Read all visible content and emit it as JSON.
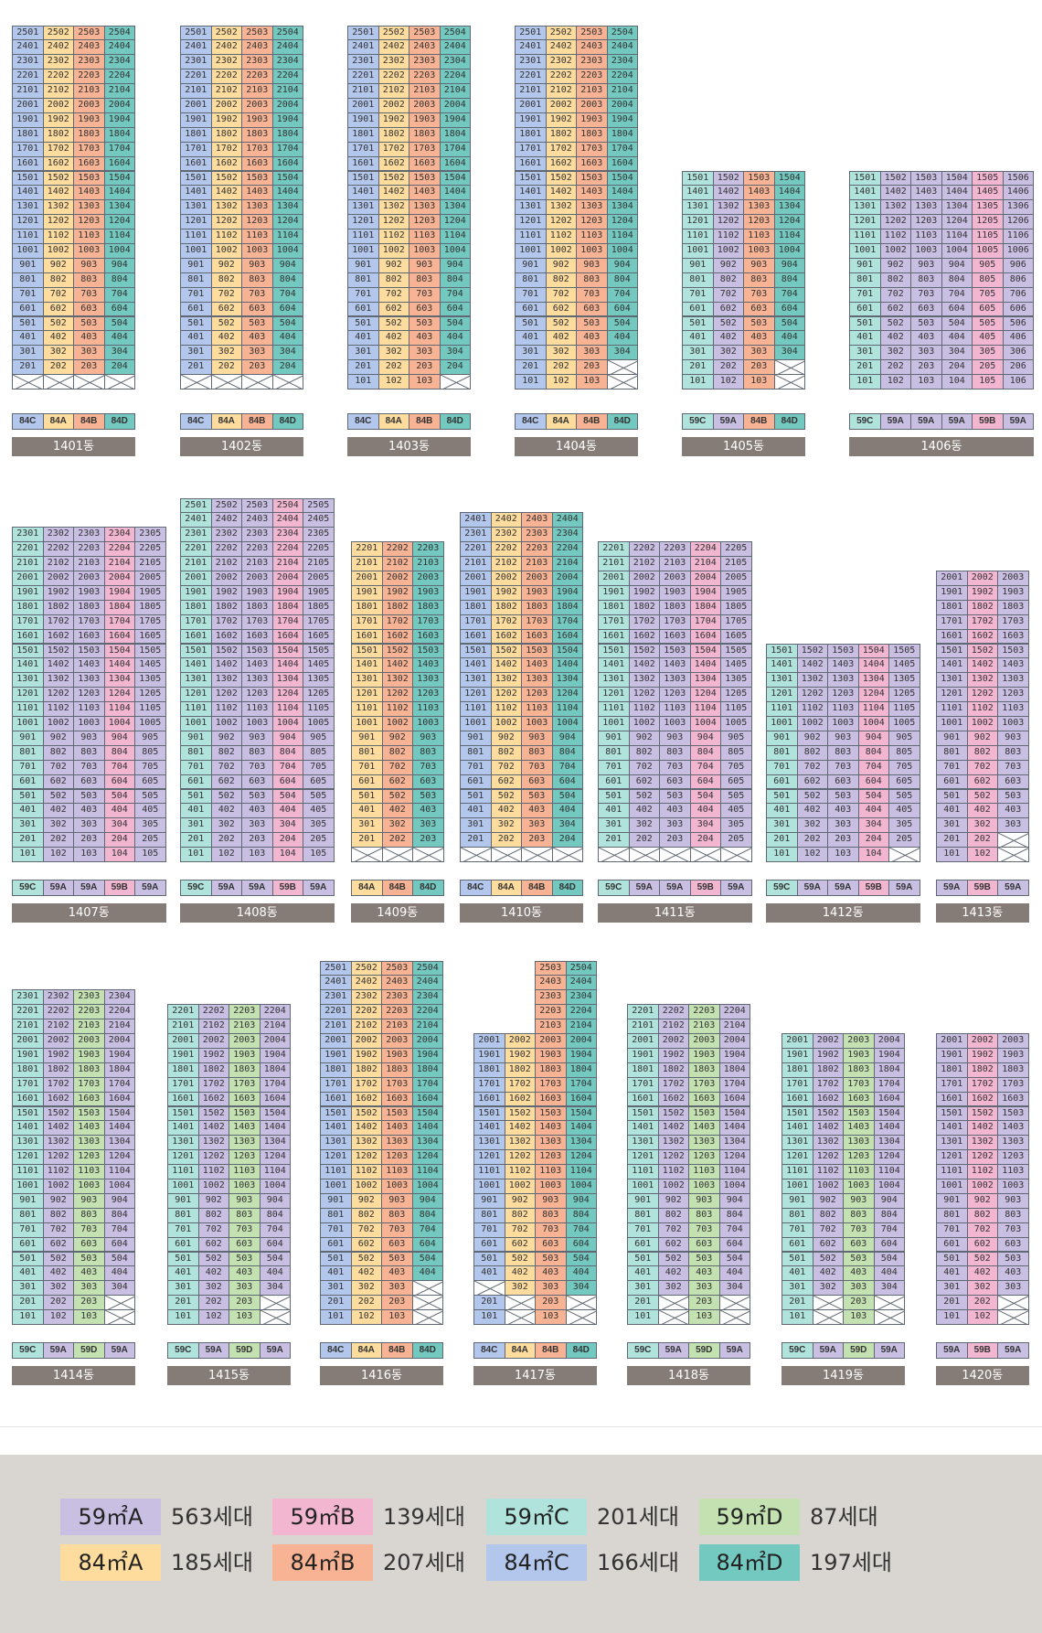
{
  "colors": {
    "59A": "#c9bfe3",
    "59B": "#f3b6d1",
    "59C": "#b0e3dc",
    "59D": "#c3e1b1",
    "84A": "#fddc9e",
    "84B": "#f7b393",
    "84C": "#b3c6ec",
    "84D": "#73c9c0"
  },
  "legend": [
    {
      "label": "59㎡A",
      "count": "563세대",
      "type": "59A"
    },
    {
      "label": "59㎡B",
      "count": "139세대",
      "type": "59B"
    },
    {
      "label": "59㎡C",
      "count": "201세대",
      "type": "59C"
    },
    {
      "label": "59㎡D",
      "count": "87세대",
      "type": "59D"
    },
    {
      "label": "84㎡A",
      "count": "185세대",
      "type": "84A"
    },
    {
      "label": "84㎡B",
      "count": "207세대",
      "type": "84B"
    },
    {
      "label": "84㎡C",
      "count": "166세대",
      "type": "84C"
    },
    {
      "label": "84㎡D",
      "count": "197세대",
      "type": "84D"
    }
  ],
  "buildings": [
    {
      "name": "1401동",
      "types": [
        "84C",
        "84A",
        "84B",
        "84D"
      ],
      "top": 25,
      "missing": {
        "1": [
          1,
          2,
          3,
          4
        ]
      }
    },
    {
      "name": "1402동",
      "types": [
        "84C",
        "84A",
        "84B",
        "84D"
      ],
      "top": 25,
      "missing": {
        "1": [
          1,
          2,
          3,
          4
        ]
      }
    },
    {
      "name": "1403동",
      "types": [
        "84C",
        "84A",
        "84B",
        "84D"
      ],
      "top": 25,
      "missing": {
        "1": [
          4
        ]
      }
    },
    {
      "name": "1404동",
      "types": [
        "84C",
        "84A",
        "84B",
        "84D"
      ],
      "top": 25,
      "missing": {
        "1": [
          4
        ],
        "2": [
          4
        ]
      }
    },
    {
      "name": "1405동",
      "types": [
        "59C",
        "59A",
        "84B",
        "84D"
      ],
      "top": 15,
      "missing": {
        "1": [
          4
        ],
        "2": [
          4
        ]
      }
    },
    {
      "name": "1406동",
      "types": [
        "59C",
        "59A",
        "59A",
        "59A",
        "59B",
        "59A"
      ],
      "top": 15,
      "missing": {}
    },
    {
      "name": "1407동",
      "types": [
        "59C",
        "59A",
        "59A",
        "59B",
        "59A"
      ],
      "top": 23,
      "missing": {}
    },
    {
      "name": "1408동",
      "types": [
        "59C",
        "59A",
        "59A",
        "59B",
        "59A"
      ],
      "top": 25,
      "missing": {}
    },
    {
      "name": "1409동",
      "types": [
        "84A",
        "84B",
        "84D"
      ],
      "top": 22,
      "missing": {
        "1": [
          1,
          2,
          3
        ]
      }
    },
    {
      "name": "1410동",
      "types": [
        "84C",
        "84A",
        "84B",
        "84D"
      ],
      "top": 24,
      "missing": {
        "1": [
          1,
          2,
          3,
          4
        ]
      }
    },
    {
      "name": "1411동",
      "types": [
        "59C",
        "59A",
        "59A",
        "59B",
        "59A"
      ],
      "top": 22,
      "missing": {
        "1": [
          1,
          2,
          3,
          4,
          5
        ]
      }
    },
    {
      "name": "1412동",
      "types": [
        "59C",
        "59A",
        "59A",
        "59B",
        "59A"
      ],
      "top": 15,
      "missing": {
        "1": [
          5
        ]
      }
    },
    {
      "name": "1413동",
      "types": [
        "59A",
        "59B",
        "59A"
      ],
      "top": 20,
      "missing": {
        "1": [
          3
        ],
        "2": [
          3
        ]
      }
    },
    {
      "name": "1414동",
      "types": [
        "59C",
        "59A",
        "59D",
        "59A"
      ],
      "top": 23,
      "missing": {
        "1": [
          4
        ],
        "2": [
          4
        ]
      }
    },
    {
      "name": "1415동",
      "types": [
        "59C",
        "59A",
        "59D",
        "59A"
      ],
      "top": 22,
      "missing": {
        "1": [
          4
        ],
        "2": [
          4
        ]
      }
    },
    {
      "name": "1416동",
      "types": [
        "84C",
        "84A",
        "84B",
        "84D"
      ],
      "top": 25,
      "missing": {
        "1": [
          4
        ],
        "2": [
          4
        ],
        "3": [
          4
        ]
      }
    },
    {
      "name": "1417동",
      "types": [
        "84C",
        "84A",
        "84B",
        "84D"
      ],
      "top": 25,
      "missing": {
        "1": [
          2,
          4
        ],
        "2": [
          2,
          4
        ],
        "3": [
          1
        ]
      },
      "col_max": [
        20,
        20,
        25,
        25
      ]
    },
    {
      "name": "1418동",
      "types": [
        "59C",
        "59A",
        "59D",
        "59A"
      ],
      "top": 22,
      "missing": {
        "1": [
          2,
          4
        ],
        "2": [
          2,
          4
        ]
      }
    },
    {
      "name": "1419동",
      "types": [
        "59C",
        "59A",
        "59D",
        "59A"
      ],
      "top": 20,
      "missing": {
        "1": [
          2,
          4
        ],
        "2": [
          2,
          4
        ]
      }
    },
    {
      "name": "1420동",
      "types": [
        "59A",
        "59B",
        "59A"
      ],
      "top": 20,
      "missing": {
        "1": [
          3
        ],
        "2": [
          3
        ]
      }
    }
  ]
}
